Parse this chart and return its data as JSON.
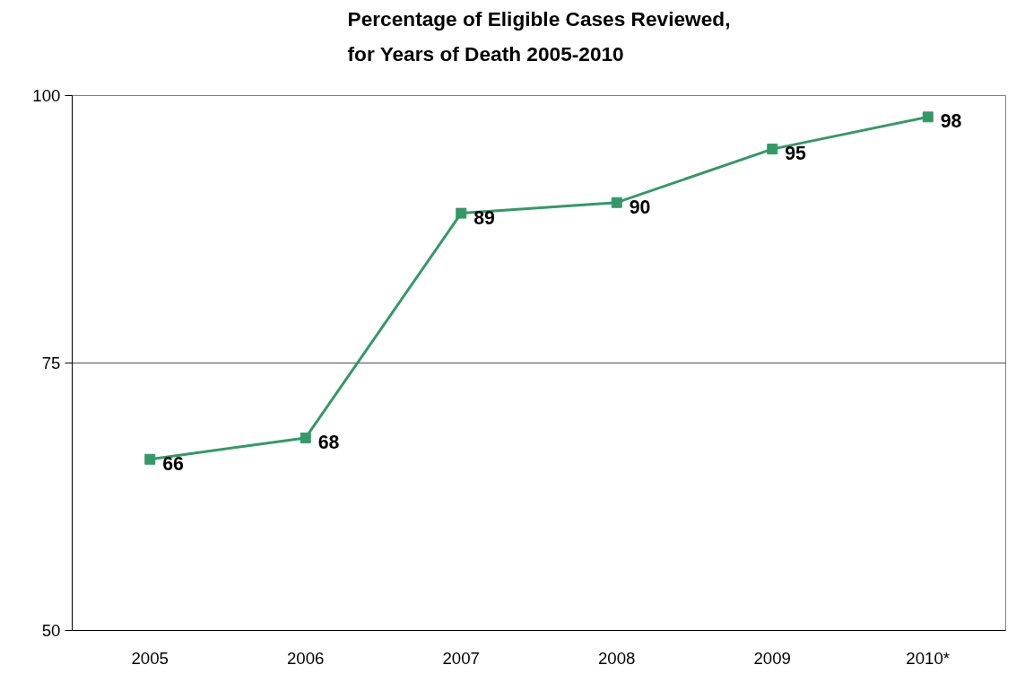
{
  "chart_data": {
    "type": "line",
    "title": "Percentage of Eligible Cases Reviewed,\nfor Years of Death 2005-2010",
    "categories": [
      "2005",
      "2006",
      "2007",
      "2008",
      "2009",
      "2010*"
    ],
    "series": [
      {
        "color": "#339966",
        "values": [
          66,
          68,
          89,
          90,
          95,
          98
        ]
      }
    ],
    "ylim": [
      50,
      100
    ],
    "yticks": [
      50,
      75,
      100
    ],
    "grid": "y",
    "marker": "square",
    "data_labels": true
  }
}
